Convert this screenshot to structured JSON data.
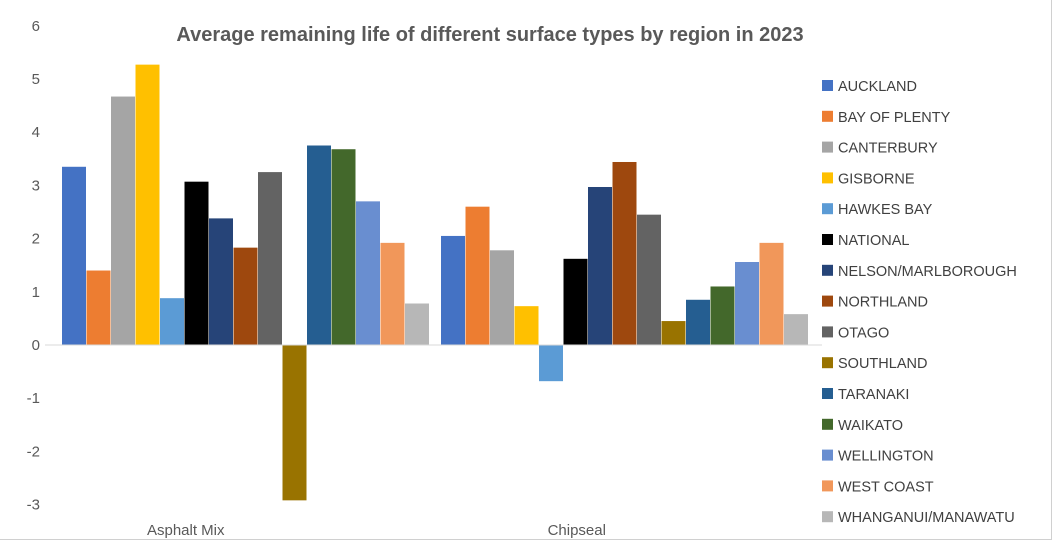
{
  "chart_data": {
    "type": "bar",
    "title": "Average remaining life of different surface types by region in 2023",
    "xlabel": "",
    "ylabel": "",
    "ylim": [
      -3,
      6
    ],
    "y_ticks": [
      "-3",
      "-2",
      "-1",
      "0",
      "1",
      "2",
      "3",
      "4",
      "5",
      "6"
    ],
    "categories": [
      "Asphalt Mix",
      "Chipseal"
    ],
    "legend_position": "right",
    "grid": false,
    "series": [
      {
        "name": "AUCKLAND",
        "color": "#4472C4",
        "values": [
          3.35,
          2.05
        ]
      },
      {
        "name": "BAY OF PLENTY",
        "color": "#ED7D31",
        "values": [
          1.4,
          2.6
        ]
      },
      {
        "name": "CANTERBURY",
        "color": "#A5A5A5",
        "values": [
          4.67,
          1.78
        ]
      },
      {
        "name": "GISBORNE",
        "color": "#FFC000",
        "values": [
          5.27,
          0.73
        ]
      },
      {
        "name": "HAWKES BAY",
        "color": "#5B9BD5",
        "values": [
          0.88,
          -0.68
        ]
      },
      {
        "name": "NATIONAL",
        "color": "#000000",
        "values": [
          3.07,
          1.62
        ]
      },
      {
        "name": "NELSON/MARLBOROUGH",
        "color": "#264478",
        "values": [
          2.38,
          2.97
        ]
      },
      {
        "name": "NORTHLAND",
        "color": "#9E480E",
        "values": [
          1.83,
          3.44
        ]
      },
      {
        "name": "OTAGO",
        "color": "#636363",
        "values": [
          3.25,
          2.45
        ]
      },
      {
        "name": "SOUTHLAND",
        "color": "#997300",
        "values": [
          -2.92,
          0.45
        ]
      },
      {
        "name": "TARANAKI",
        "color": "#255E91",
        "values": [
          3.75,
          0.85
        ]
      },
      {
        "name": "WAIKATO",
        "color": "#43682B",
        "values": [
          3.68,
          1.1
        ]
      },
      {
        "name": "WELLINGTON",
        "color": "#698ED0",
        "values": [
          2.7,
          1.56
        ]
      },
      {
        "name": "WEST COAST",
        "color": "#F1975A",
        "values": [
          1.92,
          1.92
        ]
      },
      {
        "name": "WHANGANUI/MANAWATU",
        "color": "#B7B7B7",
        "values": [
          0.78,
          0.58
        ]
      }
    ]
  }
}
